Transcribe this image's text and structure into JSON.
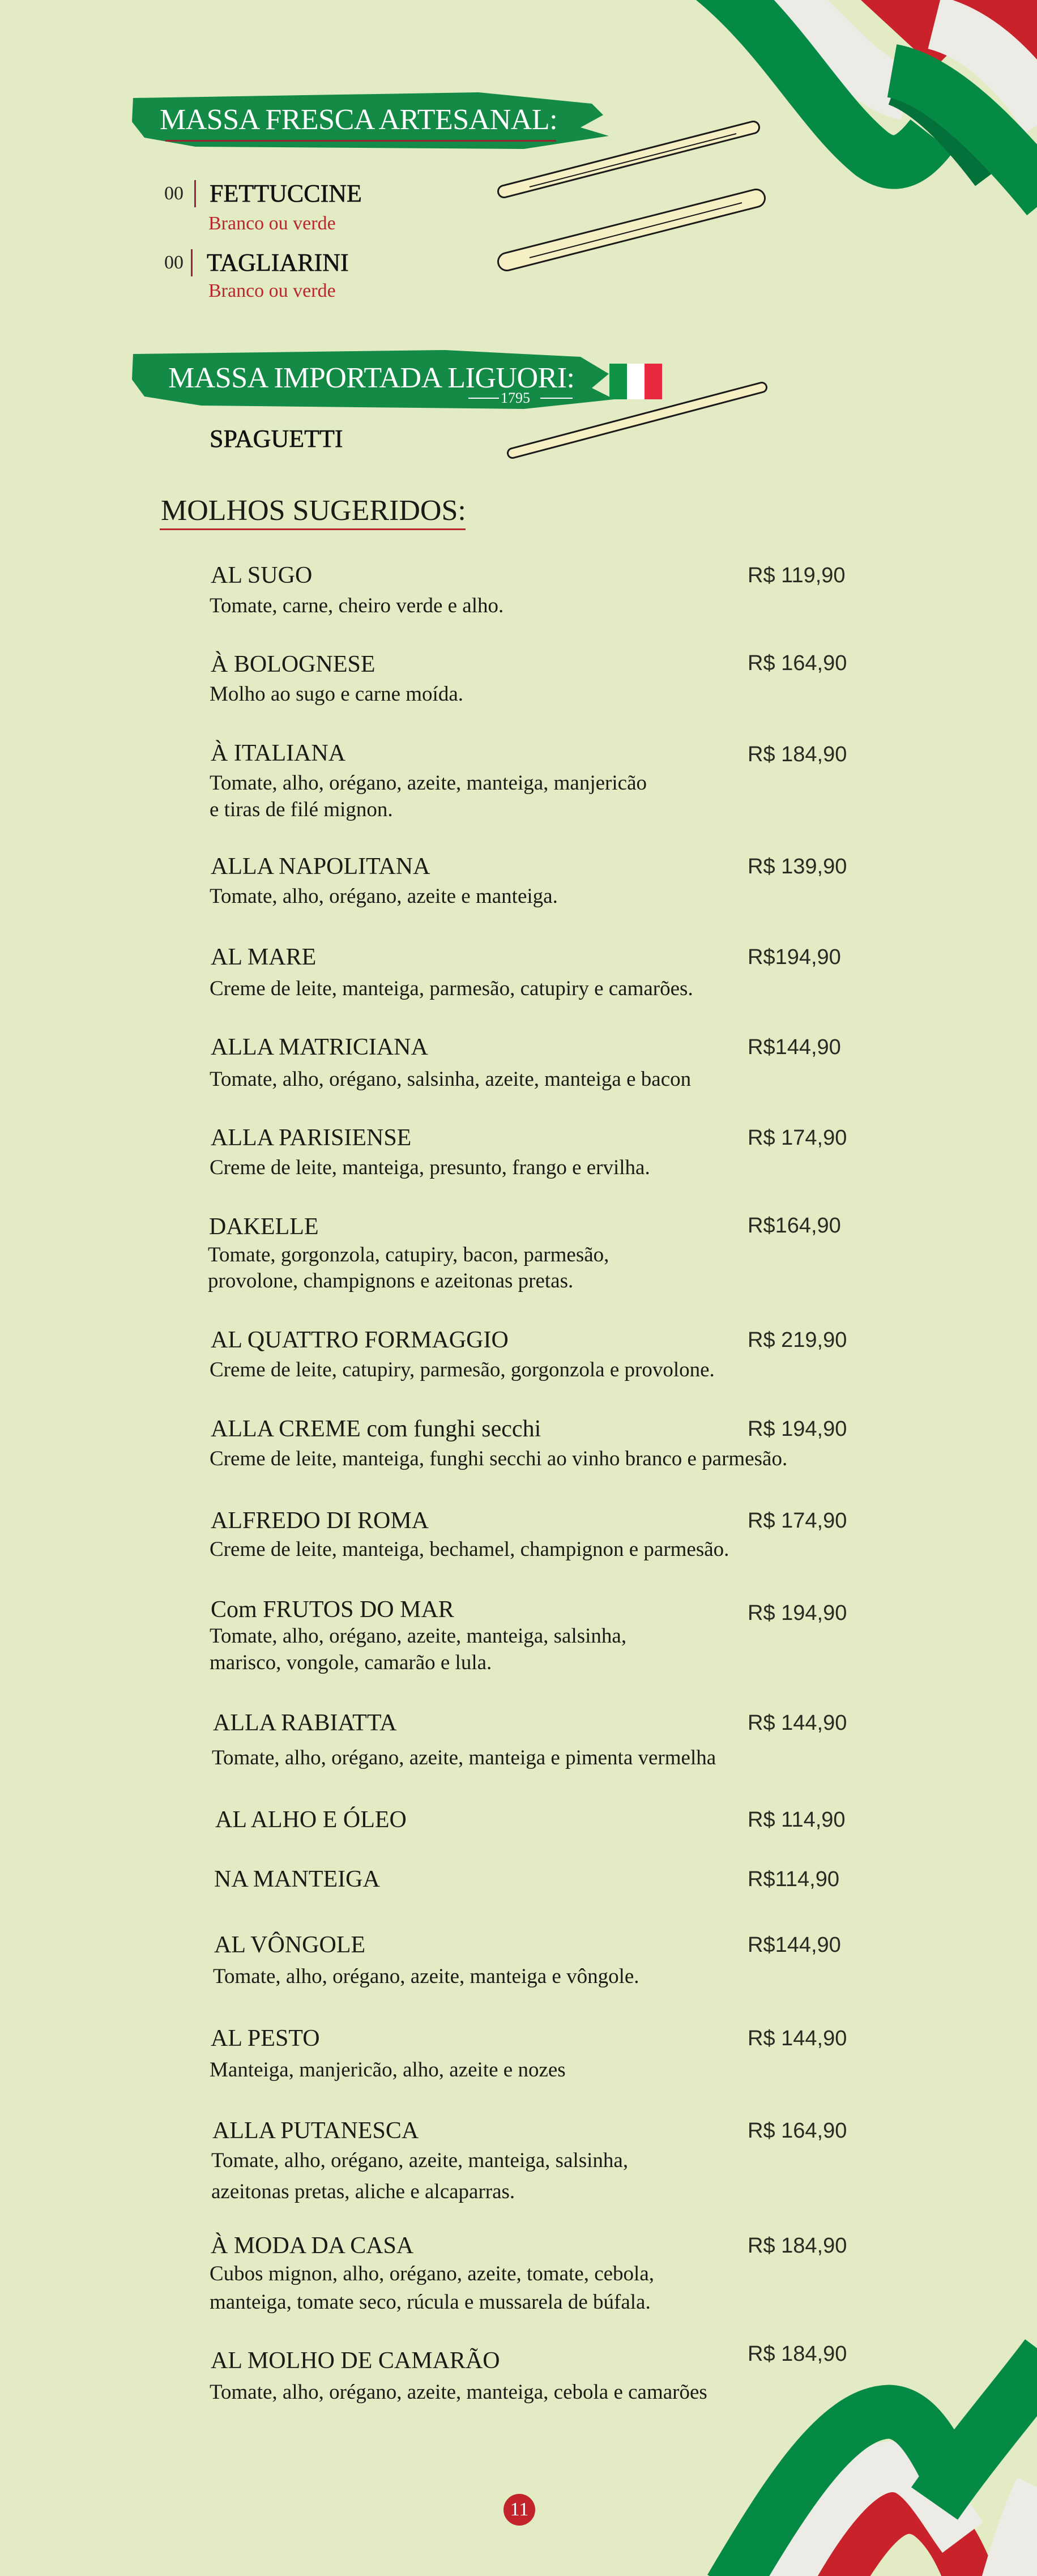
{
  "sections": {
    "fresh_pasta": {
      "title": "MASSA FRESCA ARTESANAL:",
      "items": [
        {
          "code": "00",
          "name": "FETTUCCINE",
          "variant": "Branco ou verde"
        },
        {
          "code": "00",
          "name": "TAGLIARINI",
          "variant": "Branco ou verde"
        }
      ]
    },
    "imported_pasta": {
      "title": "MASSA IMPORTADA LIGUORI:",
      "year": "1795",
      "items": [
        {
          "name": "SPAGUETTI"
        }
      ]
    },
    "sauces": {
      "title": "MOLHOS SUGERIDOS:",
      "items": [
        {
          "name": "AL SUGO",
          "price": "R$ 119,90",
          "description": [
            "Tomate, carne, cheiro verde e alho."
          ]
        },
        {
          "name": "À BOLOGNESE",
          "price": "R$ 164,90",
          "description": [
            "Molho ao sugo e carne moída."
          ]
        },
        {
          "name": "À ITALIANA",
          "price": "R$ 184,90",
          "description": [
            "Tomate, alho, orégano, azeite, manteiga, manjericão",
            " e tiras de filé mignon."
          ]
        },
        {
          "name": "ALLA NAPOLITANA",
          "price": "R$ 139,90",
          "description": [
            "Tomate, alho, orégano, azeite e manteiga."
          ]
        },
        {
          "name": "AL MARE",
          "price": "R$194,90",
          "description": [
            "Creme de leite, manteiga, parmesão, catupiry e camarões."
          ]
        },
        {
          "name": "ALLA MATRICIANA",
          "price": "R$144,90",
          "description": [
            "Tomate, alho, orégano, salsinha, azeite,  manteiga e bacon"
          ]
        },
        {
          "name": "ALLA PARISIENSE",
          "price": "R$ 174,90",
          "description": [
            "Creme de leite, manteiga, presunto, frango e ervilha."
          ]
        },
        {
          "name": "DAKELLE",
          "price": "R$164,90",
          "description": [
            "Tomate, gorgonzola, catupiry, bacon, parmesão,",
            " provolone, champignons e azeitonas pretas."
          ]
        },
        {
          "name": "AL QUATTRO FORMAGGIO",
          "price": "R$ 219,90",
          "description": [
            "Creme de leite, catupiry, parmesão, gorgonzola e provolone."
          ]
        },
        {
          "name": "ALLA CREME com funghi secchi",
          "price": "R$ 194,90",
          "description": [
            "Creme de leite, manteiga, funghi secchi ao vinho branco e parmesão."
          ]
        },
        {
          "name": "ALFREDO DI ROMA",
          "price": "R$ 174,90",
          "description": [
            "Creme de leite, manteiga, bechamel, champignon e parmesão."
          ]
        },
        {
          "name": "Com FRUTOS DO MAR",
          "price": "R$ 194,90",
          "description": [
            "Tomate, alho, orégano, azeite, manteiga, salsinha,",
            "marisco, vongole, camarão e lula."
          ]
        },
        {
          "name": "ALLA RABIATTA",
          "price": "R$ 144,90",
          "description": [
            "Tomate, alho, orégano, azeite, manteiga e pimenta vermelha"
          ]
        },
        {
          "name": "AL ALHO E ÓLEO",
          "price": "R$ 114,90",
          "description": []
        },
        {
          "name": "NA MANTEIGA",
          "price": "R$114,90",
          "description": []
        },
        {
          "name": "AL VÔNGOLE",
          "price": "R$144,90",
          "description": [
            " Tomate, alho, orégano, azeite, manteiga e vôngole."
          ]
        },
        {
          "name": "AL PESTO",
          "price": "R$ 144,90",
          "description": [
            "Manteiga, manjericão, alho, azeite e nozes"
          ]
        },
        {
          "name": "ALLA PUTANESCA",
          "price": "R$ 164,90",
          "description": [
            "Tomate, alho, orégano, azeite, manteiga, salsinha,",
            "azeitonas pretas, aliche e alcaparras."
          ]
        },
        {
          "name": "À MODA DA CASA",
          "price": "R$ 184,90",
          "description": [
            "Cubos mignon, alho, orégano, azeite, tomate, cebola,",
            " manteiga, tomate seco, rúcula e mussarela de búfala."
          ]
        },
        {
          "name": "AL MOLHO DE CAMARÃO",
          "price": "R$ 184,90",
          "description": [
            "Tomate, alho, orégano, azeite, manteiga, cebola e camarões"
          ]
        }
      ]
    }
  },
  "page_number": "11",
  "colors": {
    "background": "#e2ebc4",
    "brand_green": "#138a45",
    "accent_red": "#c3232a",
    "pasta": "#f6efc4"
  },
  "icons": [
    "italian-flag-ribbon",
    "italian-flag",
    "fettuccine-drawing",
    "tagliarini-drawing",
    "spaghetti-drawing"
  ]
}
